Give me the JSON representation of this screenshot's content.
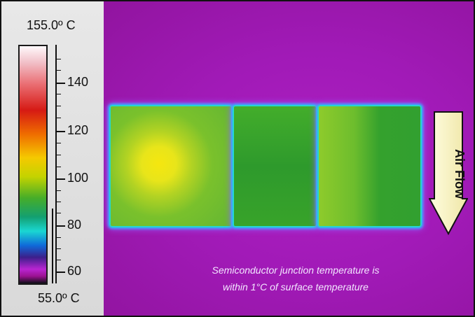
{
  "scale": {
    "max_label": "155.0º C",
    "min_label": "55.0º C",
    "ticks": [
      "140",
      "120",
      "100",
      "80",
      "60"
    ]
  },
  "arrow_label": "Air Flow",
  "caption": {
    "line1": "Semiconductor junction temperature is",
    "line2": "within 1°C of surface temperature"
  }
}
